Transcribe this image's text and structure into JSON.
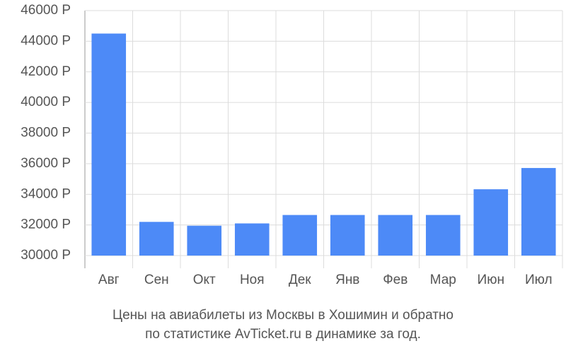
{
  "chart_data": {
    "type": "bar",
    "title": [
      "Цены на авиабилеты из Москвы в Хошимин и обратно",
      "по статистике AvTicket.ru в динамике за год."
    ],
    "categories": [
      "Авг",
      "Сен",
      "Окт",
      "Ноя",
      "Дек",
      "Янв",
      "Фев",
      "Мар",
      "Июн",
      "Июл"
    ],
    "values": [
      44500,
      32200,
      31950,
      32100,
      32650,
      32650,
      32650,
      32650,
      34330,
      35720
    ],
    "color": "#4d8af7",
    "ylim": [
      30000,
      46000
    ],
    "yticks": [
      {
        "value": 30000,
        "label": "30000 Р"
      },
      {
        "value": 32000,
        "label": "32000 Р"
      },
      {
        "value": 34000,
        "label": "34000 Р"
      },
      {
        "value": 36000,
        "label": "36000 Р"
      },
      {
        "value": 38000,
        "label": "38000 Р"
      },
      {
        "value": 40000,
        "label": "40000 Р"
      },
      {
        "value": 42000,
        "label": "42000 Р"
      },
      {
        "value": 44000,
        "label": "44000 Р"
      },
      {
        "value": 46000,
        "label": "46000 Р"
      }
    ],
    "grid": true
  }
}
